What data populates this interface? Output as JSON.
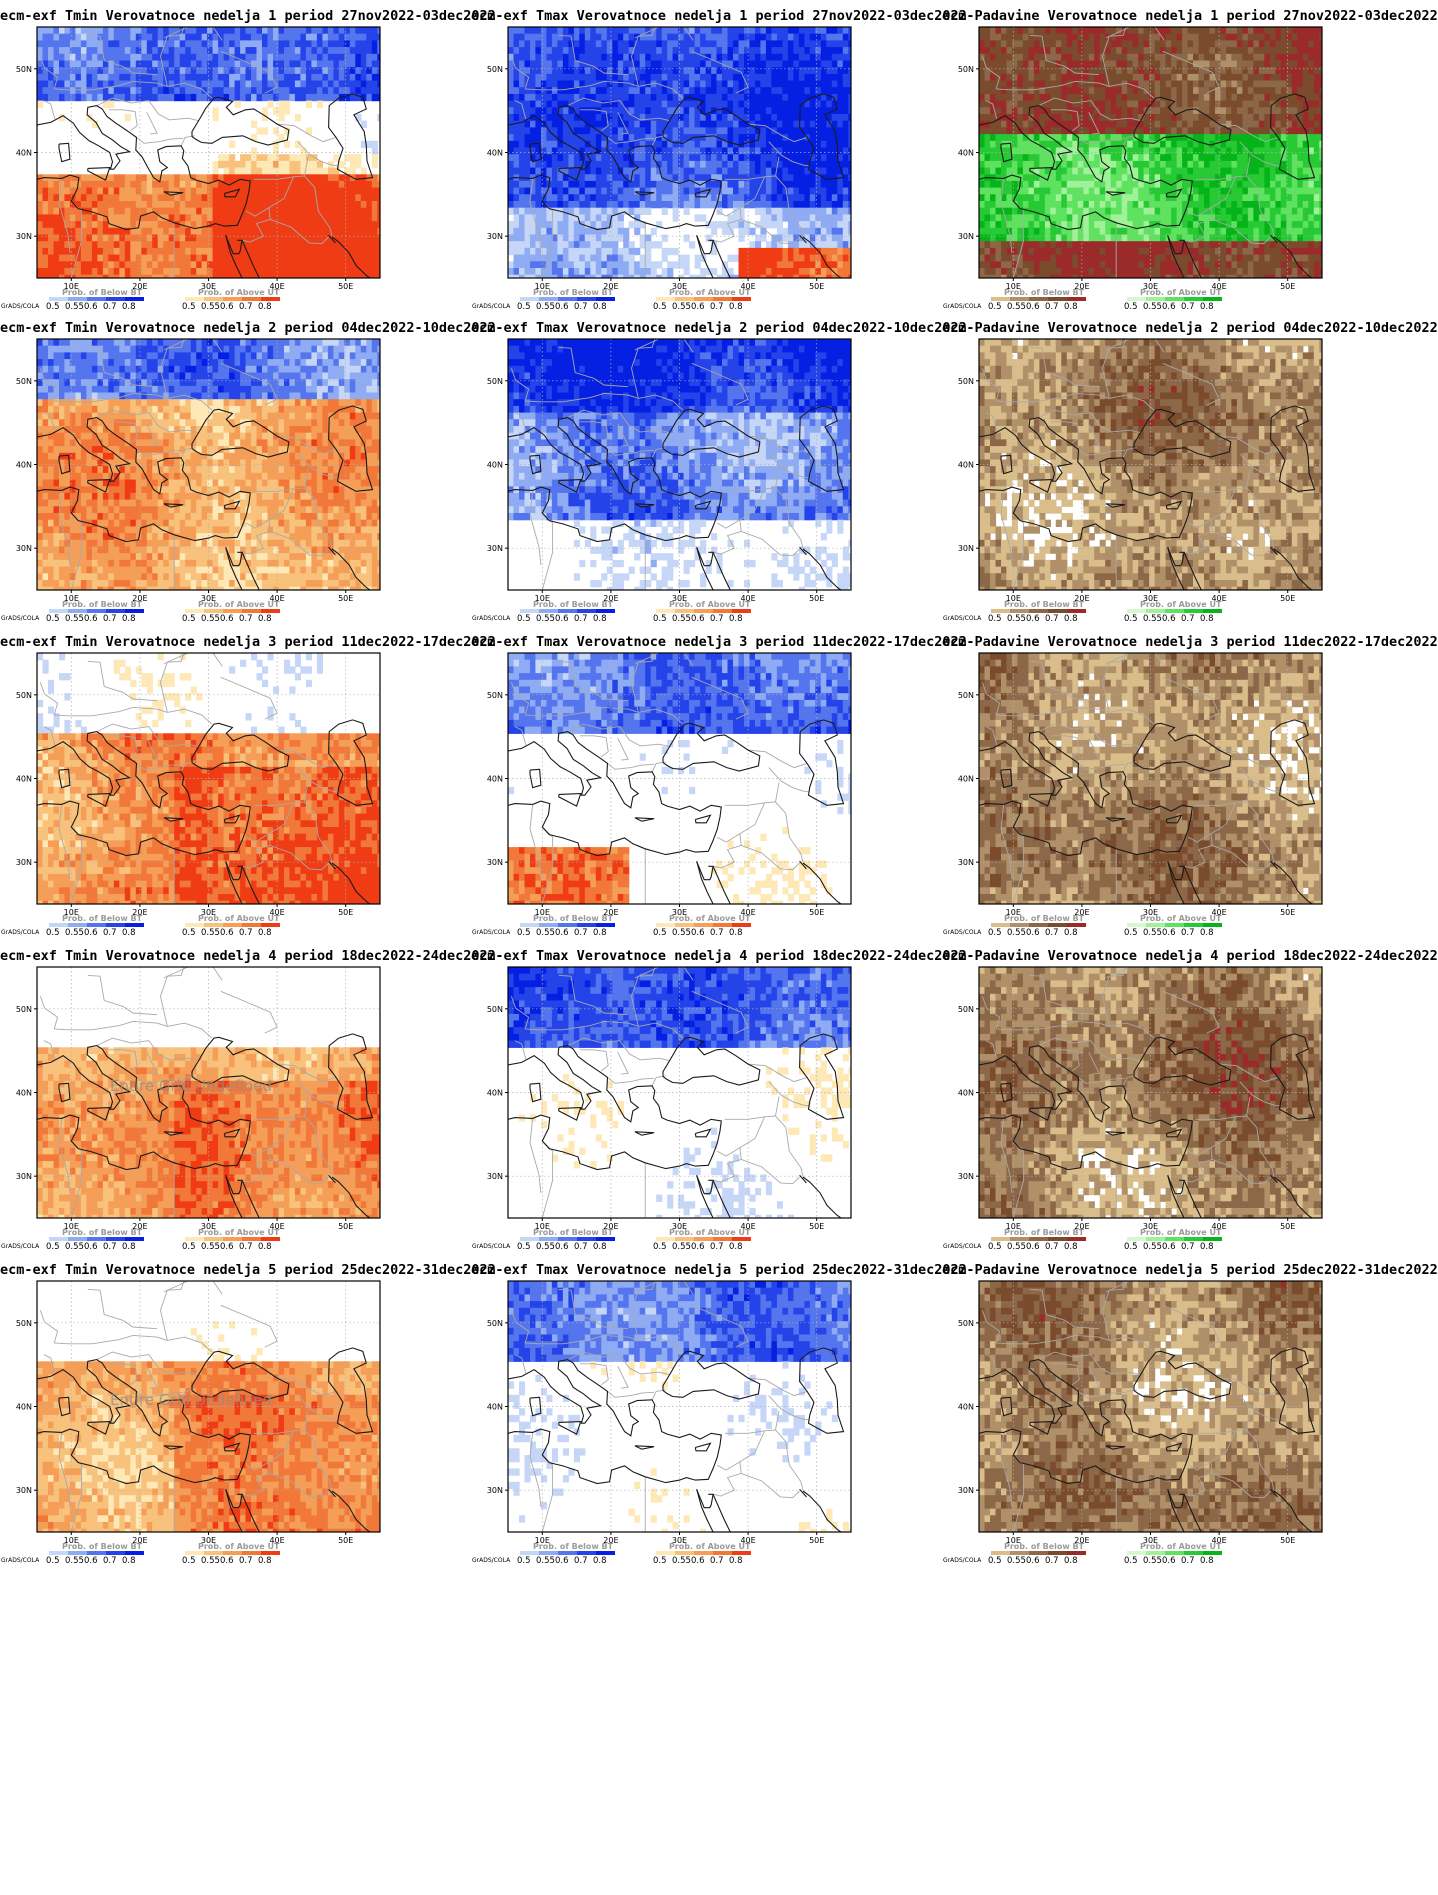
{
  "map": {
    "lat_ticks": [
      "30N",
      "40N",
      "50N"
    ],
    "lon_ticks": [
      "10E",
      "20E",
      "30E",
      "40E",
      "50E"
    ],
    "lon_range": [
      5,
      55
    ],
    "lat_range": [
      25,
      55
    ]
  },
  "legend": {
    "credit": "GrADS/COLA",
    "levels": [
      "0.5",
      "0.55",
      "0.6",
      "0.7",
      "0.8"
    ],
    "below_title": "Prob. of Below BT",
    "above_title": "Prob. of Above UT"
  },
  "undefined_label": "Entire Grid Undefined",
  "palettes": {
    "cold": [
      "#c5d6f7",
      "#8eabf3",
      "#5575ee",
      "#2444ea",
      "#0520e3"
    ],
    "warm": [
      "#fde8b6",
      "#f8c27c",
      "#f59e58",
      "#f2783a",
      "#ef3c14"
    ],
    "dry": [
      "#d9bd8b",
      "#b09068",
      "#8c6748",
      "#7a4c2d",
      "#9b2b2a"
    ],
    "wet": [
      "#d7f7cc",
      "#a0f29a",
      "#5fe25f",
      "#27c934",
      "#05b418"
    ]
  },
  "rows": [
    {
      "titles": [
        "ecm-exf Tmin Verovatnoce nedelja 1 period 27nov2022-03dec2022",
        "ecm-exf Tmax Verovatnoce nedelja 1 period 27nov2022-03dec2022",
        "ecm-Padavine Verovatnoce nedelja 1 period 27nov2022-03dec2022"
      ],
      "undef": [
        false,
        false,
        false
      ]
    },
    {
      "titles": [
        "ecm-exf Tmin Verovatnoce nedelja 2 period 04dec2022-10dec2022",
        "ecm-exf Tmax Verovatnoce nedelja 2 period 04dec2022-10dec2022",
        "ecm-Padavine Verovatnoce nedelja 2 period 04dec2022-10dec2022"
      ],
      "undef": [
        false,
        false,
        false
      ]
    },
    {
      "titles": [
        "ecm-exf Tmin Verovatnoce nedelja 3 period 11dec2022-17dec2022",
        "ecm-exf Tmax Verovatnoce nedelja 3 period 11dec2022-17dec2022",
        "ecm-Padavine Verovatnoce nedelja 3 period 11dec2022-17dec2022"
      ],
      "undef": [
        false,
        false,
        false
      ]
    },
    {
      "titles": [
        "ecm-exf Tmin Verovatnoce nedelja 4 period 18dec2022-24dec2022",
        "ecm-exf Tmax Verovatnoce nedelja 4 period 18dec2022-24dec2022",
        "ecm-Padavine Verovatnoce nedelja 4 period 18dec2022-24dec2022"
      ],
      "undef": [
        true,
        false,
        false
      ]
    },
    {
      "titles": [
        "ecm-exf Tmin Verovatnoce nedelja 5 period 25dec2022-31dec2022",
        "ecm-exf Tmax Verovatnoce nedelja 5 period 25dec2022-31dec2022",
        "ecm-Padavine Verovatnoce nedelja 5 period 25dec2022-31dec2022"
      ],
      "undef": [
        true,
        false,
        false
      ]
    }
  ]
}
